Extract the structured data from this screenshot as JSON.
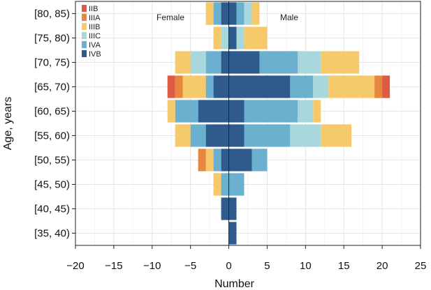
{
  "chart_data": {
    "type": "bar",
    "orientation": "horizontal-stacked-diverging",
    "xlabel": "Number",
    "ylabel": "Age, years",
    "xlim": [
      -20,
      25
    ],
    "xticks": [
      -20,
      -15,
      -10,
      -5,
      0,
      5,
      10,
      15,
      20,
      25
    ],
    "xtick_labels": [
      "−20",
      "−15",
      "−10",
      "−5",
      "0",
      "5",
      "10",
      "15",
      "20",
      "25"
    ],
    "grid": true,
    "legend_position": "top-left",
    "left_label": "Female",
    "right_label": "Male",
    "categories": [
      "[80, 85)",
      "[75, 80)",
      "[70, 75)",
      "[65, 70)",
      "[60, 65)",
      "[55, 60)",
      "[50, 55)",
      "[45, 50)",
      "[40, 45)",
      "[35, 40)"
    ],
    "series": [
      {
        "name": "IVB",
        "color": "#2e5b8c",
        "female": [
          1,
          0,
          1,
          2,
          4,
          3,
          1,
          0,
          1,
          0
        ],
        "male": [
          1,
          1,
          4,
          8,
          2,
          2,
          3,
          0,
          1,
          1
        ]
      },
      {
        "name": "IVA",
        "color": "#6bb1cf",
        "female": [
          1,
          0,
          2,
          1,
          3,
          2,
          1,
          1,
          0,
          0
        ],
        "male": [
          1,
          0,
          5,
          3,
          7,
          6,
          2,
          2,
          0,
          0
        ]
      },
      {
        "name": "IIIC",
        "color": "#a9d8dc",
        "female": [
          0,
          1,
          2,
          0,
          0,
          0,
          0,
          0,
          0,
          0
        ],
        "male": [
          1,
          1,
          3,
          2,
          2,
          4,
          0,
          0,
          0,
          0
        ]
      },
      {
        "name": "IIIB",
        "color": "#f6c96b",
        "female": [
          1,
          1,
          2,
          3,
          1,
          2,
          1,
          1,
          0,
          0
        ],
        "male": [
          1,
          3,
          5,
          6,
          1,
          4,
          0,
          0,
          0,
          0
        ]
      },
      {
        "name": "IIIA",
        "color": "#e8863f",
        "female": [
          0,
          0,
          0,
          1,
          0,
          0,
          1,
          0,
          0,
          0
        ],
        "male": [
          0,
          0,
          0,
          1,
          0,
          0,
          0,
          0,
          0,
          0
        ]
      },
      {
        "name": "IIB",
        "color": "#dd5a43",
        "female": [
          0,
          0,
          0,
          1,
          0,
          0,
          0,
          0,
          0,
          0
        ],
        "male": [
          0,
          0,
          0,
          1,
          0,
          0,
          0,
          0,
          0,
          0
        ]
      }
    ],
    "legend_order": [
      "IIB",
      "IIIA",
      "IIIB",
      "IIIC",
      "IVA",
      "IVB"
    ]
  }
}
